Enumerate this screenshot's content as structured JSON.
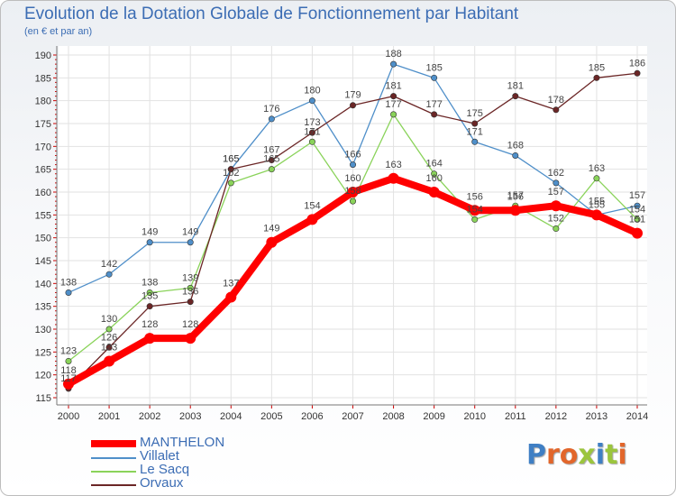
{
  "title": "Evolution de la Dotation Globale de Fonctionnement par Habitant",
  "subtitle": "(en € et par an)",
  "logo": {
    "text": "Proxiti",
    "colors": [
      "#3f7fc4",
      "#e2662b",
      "#e2662b",
      "#9bc53d",
      "#3f7fc4",
      "#9bc53d",
      "#e2662b"
    ]
  },
  "chart_data": {
    "type": "line",
    "title": "Evolution de la Dotation Globale de Fonctionnement par Habitant",
    "ylabel": "(en € et par an)",
    "xlabel": "",
    "categories": [
      "2000",
      "2001",
      "2002",
      "2003",
      "2004",
      "2005",
      "2006",
      "2007",
      "2008",
      "2009",
      "2010",
      "2011",
      "2012",
      "2013",
      "2014"
    ],
    "ylim": [
      115,
      190
    ],
    "yticks": [
      115,
      120,
      125,
      130,
      135,
      140,
      145,
      150,
      155,
      160,
      165,
      170,
      175,
      180,
      185,
      190
    ],
    "grid": true,
    "series": [
      {
        "name": "MANTHELON",
        "color": "#ff0000",
        "values": [
          118,
          123,
          128,
          128,
          137,
          149,
          154,
          160,
          163,
          160,
          156,
          156,
          157,
          155,
          151
        ]
      },
      {
        "name": "Villalet",
        "color": "#4f8fc9",
        "values": [
          138,
          142,
          149,
          149,
          165,
          176,
          180,
          166,
          188,
          185,
          171,
          168,
          162,
          155,
          157
        ]
      },
      {
        "name": "Le Sacq",
        "color": "#8ad35a",
        "values": [
          123,
          130,
          138,
          139,
          162,
          165,
          171,
          158,
          177,
          164,
          154,
          157,
          152,
          163,
          154
        ]
      },
      {
        "name": "Orvaux",
        "color": "#6b2626",
        "values": [
          117,
          126,
          135,
          136,
          165,
          167,
          173,
          179,
          181,
          177,
          175,
          181,
          178,
          185,
          186
        ]
      }
    ]
  }
}
